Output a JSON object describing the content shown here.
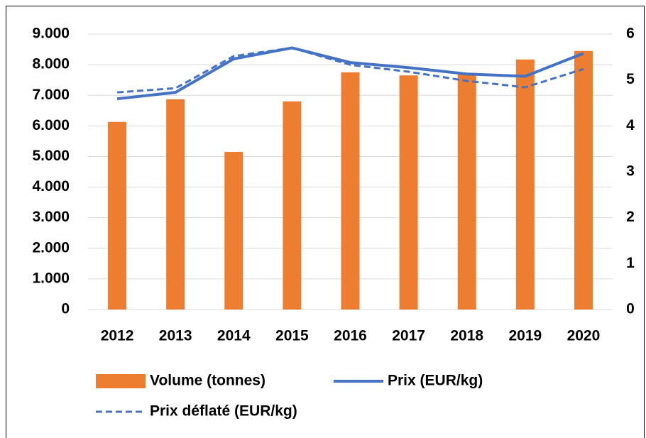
{
  "chart_data": {
    "type": "bar_line",
    "categories": [
      "2012",
      "2013",
      "2014",
      "2015",
      "2016",
      "2017",
      "2018",
      "2019",
      "2020"
    ],
    "series": [
      {
        "name": "Volume (tonnes)",
        "type": "bar",
        "color": "#ed7d31",
        "values": [
          6130,
          6870,
          5150,
          6800,
          7750,
          7650,
          7730,
          8170,
          8450
        ]
      },
      {
        "name": "Prix (EUR/kg)",
        "type": "line",
        "axis": "y2",
        "dash": false,
        "color": "#4472c4",
        "values": [
          4.59,
          4.73,
          5.46,
          5.7,
          5.38,
          5.27,
          5.13,
          5.08,
          5.58
        ]
      },
      {
        "name": "Prix déflaté (EUR/kg)",
        "type": "line",
        "axis": "y2",
        "dash": true,
        "color": "#4472c4",
        "values": [
          4.73,
          4.82,
          5.52,
          5.7,
          5.33,
          5.18,
          4.98,
          4.84,
          5.24
        ]
      }
    ],
    "ylim": [
      0,
      9000
    ],
    "yticks": [
      0,
      {
        "value": 1000,
        "label": "1.000"
      },
      {
        "value": 2000,
        "label": "2.000"
      },
      {
        "value": 3000,
        "label": "3.000"
      },
      {
        "value": 4000,
        "label": "4.000"
      },
      {
        "value": 5000,
        "label": "5.000"
      },
      {
        "value": 6000,
        "label": "6.000"
      },
      {
        "value": 7000,
        "label": "7.000"
      },
      {
        "value": 8000,
        "label": "8.000"
      },
      {
        "value": 9000,
        "label": "9.000"
      }
    ],
    "y2lim": [
      0,
      6
    ],
    "y2ticks": [
      0,
      1,
      2,
      3,
      4,
      5,
      6
    ],
    "grid": true,
    "legend": "bottom"
  }
}
